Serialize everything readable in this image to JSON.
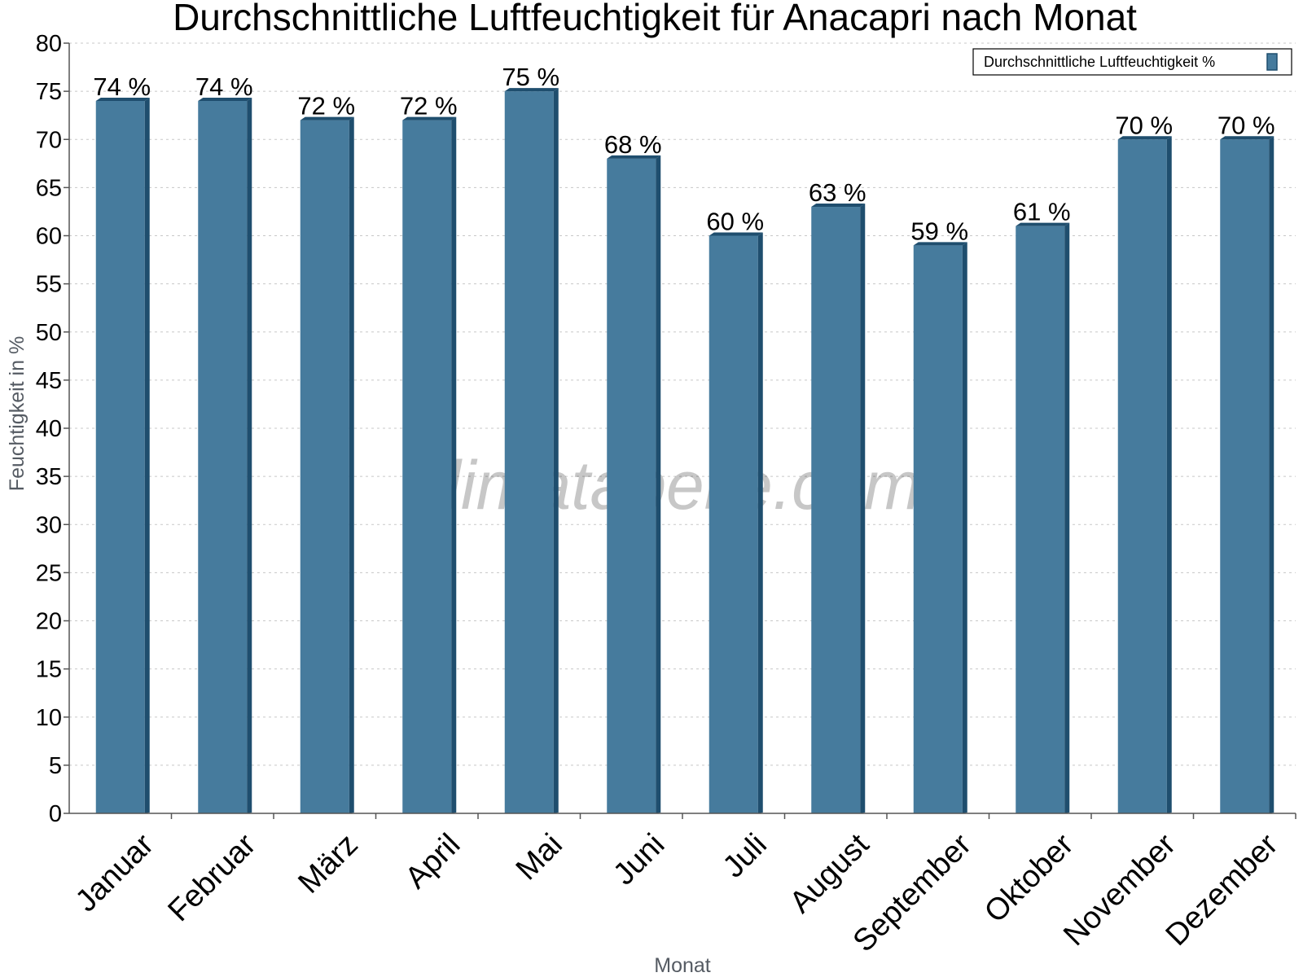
{
  "chart_data": {
    "type": "bar",
    "title": "Durchschnittliche Luftfeuchtigkeit für Anacapri nach Monat",
    "xlabel": "Monat",
    "ylabel": "Feuchtigkeit in %",
    "ylim": [
      0,
      80
    ],
    "yticks": [
      0,
      5,
      10,
      15,
      20,
      25,
      30,
      35,
      40,
      45,
      50,
      55,
      60,
      65,
      70,
      75,
      80
    ],
    "categories": [
      "Januar",
      "Februar",
      "März",
      "April",
      "Mai",
      "Juni",
      "Juli",
      "August",
      "September",
      "Oktober",
      "November",
      "Dezember"
    ],
    "series": [
      {
        "name": "Durchschnittliche Luftfeuchtigkeit %",
        "values": [
          74,
          74,
          72,
          72,
          75,
          68,
          60,
          63,
          59,
          61,
          70,
          70
        ],
        "labels": [
          "74 %",
          "74 %",
          "72 %",
          "72 %",
          "75 %",
          "68 %",
          "60 %",
          "63 %",
          "59 %",
          "61 %",
          "70 %",
          "70 %"
        ],
        "color": "#467b9d",
        "side_color": "#1f4e6e"
      }
    ],
    "grid": true,
    "legend_position": "top-right",
    "watermark": "klimatabelle.com"
  }
}
